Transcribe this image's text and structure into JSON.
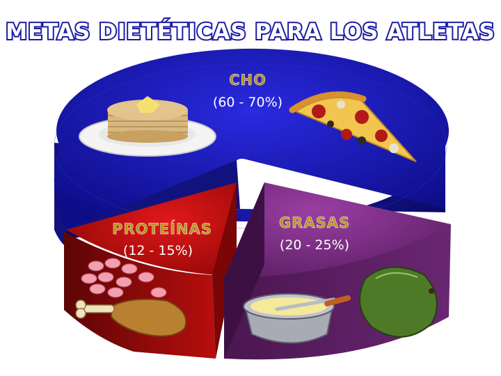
{
  "chart_data": {
    "type": "pie",
    "title": "METAS DIETÉTICAS PARA LOS ATLETAS",
    "slices": [
      {
        "name": "CHO",
        "range_label": "(60 - 70%)",
        "value": 65,
        "color": "#1a1ab8"
      },
      {
        "name": "PROTEÍNAS",
        "range_label": "(12 - 15%)",
        "value": 13.5,
        "color": "#c0100f"
      },
      {
        "name": "GRASAS",
        "range_label": "(20 - 25%)",
        "value": 22.5,
        "color": "#7e2f86"
      }
    ],
    "legend": "none"
  },
  "icons": {
    "cho": [
      "pancakes-icon",
      "pizza-slice-icon"
    ],
    "proteinas": [
      "beans-icon",
      "chicken-leg-icon"
    ],
    "grasas": [
      "butter-bowl-icon",
      "avocado-icon"
    ]
  }
}
